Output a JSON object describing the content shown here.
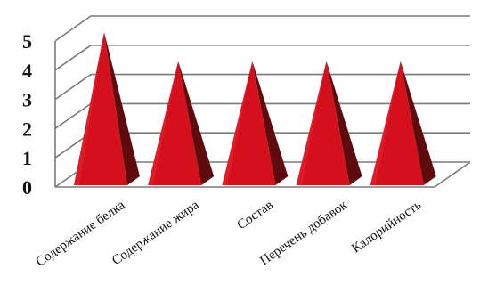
{
  "chart_data": {
    "type": "bar",
    "style": "3d-pyramid",
    "categories": [
      "Содержание белка",
      "Содержание жира",
      "Состав",
      "Перечень добавок",
      "Калорийность"
    ],
    "values": [
      5,
      4,
      4,
      4,
      4
    ],
    "ylim": [
      0,
      5
    ],
    "yticks": [
      "0",
      "1",
      "2",
      "3",
      "4",
      "5"
    ],
    "grid": true,
    "legend": "none",
    "colors": {
      "front": "#d4101c",
      "side": "#5e0a0e",
      "highlight": "#e8232e",
      "grid": "#7a7a7a"
    }
  }
}
